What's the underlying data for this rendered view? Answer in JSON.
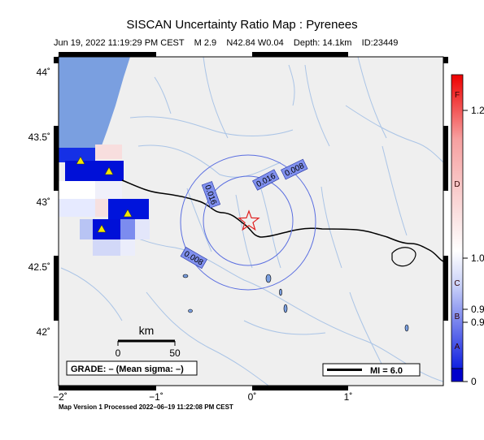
{
  "header": {
    "title": "SISCAN Uncertainty Ratio Map : Pyrenees",
    "subtitle": "Jun 19, 2022 11:19:29 PM CEST    M 2.9    N42.84 W0.04    Depth: 14.1km    ID:23449"
  },
  "axes": {
    "lat_labels": [
      "44˚",
      "43.5˚",
      "43˚",
      "42.5˚",
      "42˚"
    ],
    "lon_labels": [
      "−2˚",
      "−1˚",
      "0˚",
      "1˚"
    ]
  },
  "contours": [
    "0.016",
    "0.016",
    "0.008",
    "0.008"
  ],
  "scale_bar": {
    "unit": "km",
    "start": "0",
    "end": "50"
  },
  "grade_box": "GRADE: – (Mean sigma: –)",
  "mi_legend": "MI = 6.0",
  "colorbar": {
    "letters": [
      "F",
      "D",
      "C",
      "B",
      "A"
    ],
    "values": [
      "1.2",
      "1.0",
      "0.9",
      "0.9",
      "0"
    ]
  },
  "footer": "Map Version 1 Processed 2022–06–19 11:22:08 PM CEST",
  "colors": {
    "sea": "#7a9fe0",
    "land": "#efefef",
    "rivers": "#aac4e6",
    "border": "#000000",
    "contour": "#5a6ee0",
    "epicenter": "#e02020",
    "station": "#f2e600",
    "bar_red": "#ee0000",
    "bar_blue": "#0000cc"
  },
  "icons": {
    "epicenter": "star-icon",
    "station": "triangle-icon"
  }
}
